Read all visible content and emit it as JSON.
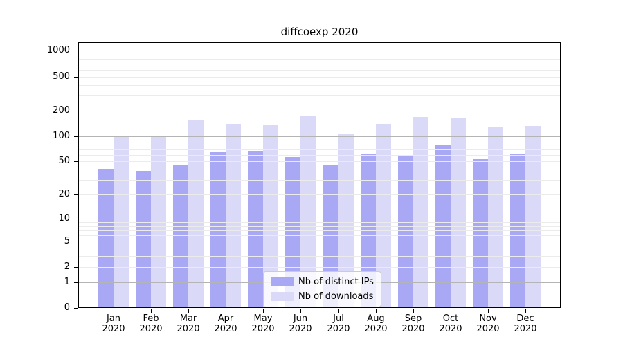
{
  "title": "diffcoexp 2020",
  "year": "2020",
  "chart_data": {
    "type": "bar",
    "title": "diffcoexp 2020",
    "months": [
      "Jan",
      "Feb",
      "Mar",
      "Apr",
      "May",
      "Jun",
      "Jul",
      "Aug",
      "Sep",
      "Oct",
      "Nov",
      "Dec"
    ],
    "year": "2020",
    "series": [
      {
        "name": "Nb of distinct IPs",
        "color": "#a8a8f4",
        "values": [
          41,
          39,
          46,
          64,
          67,
          57,
          45,
          61,
          59,
          78,
          53,
          61
        ]
      },
      {
        "name": "Nb of downloads",
        "color": "#dadaf8",
        "values": [
          100,
          97,
          152,
          139,
          137,
          172,
          105,
          139,
          168,
          166,
          129,
          132
        ]
      }
    ],
    "yscale": "log1p",
    "ylim": [
      0,
      1258
    ],
    "ytick_values": [
      1000,
      500,
      200,
      100,
      50,
      20,
      10,
      5,
      2,
      1,
      0
    ],
    "ytick_labels": [
      "1000",
      "500",
      "200",
      "100",
      "50",
      "20",
      "10",
      "5",
      "2",
      "1",
      "0"
    ],
    "grid": {
      "major_values": [
        1,
        10,
        100,
        1000
      ],
      "minor_values": [
        2,
        3,
        4,
        5,
        6,
        7,
        8,
        9,
        20,
        30,
        40,
        50,
        60,
        70,
        80,
        90,
        200,
        300,
        400,
        500,
        600,
        700,
        800,
        900
      ],
      "major_color": "#b4b4b4",
      "minor_color": "#ebebeb"
    },
    "legend_position": "lower center",
    "xlabel": "",
    "ylabel": "",
    "colors": {
      "background": "#ffffff",
      "spine": "#000000",
      "text": "#000000",
      "legend_border": "#cccccc"
    }
  }
}
